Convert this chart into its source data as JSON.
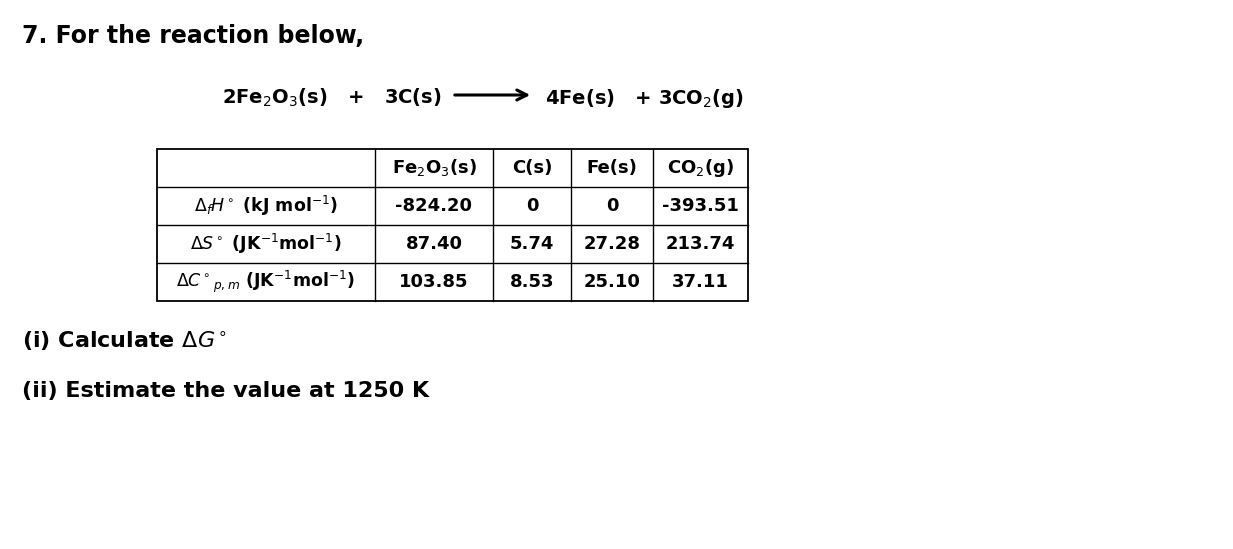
{
  "title_number": "7.",
  "title_text": " For the reaction below,",
  "bg_color": "#ffffff",
  "text_color": "#000000",
  "table_data": [
    [
      "-824.20",
      "0",
      "0",
      "-393.51"
    ],
    [
      "87.40",
      "5.74",
      "27.28",
      "213.74"
    ],
    [
      "103.85",
      "8.53",
      "25.10",
      "37.11"
    ]
  ],
  "font_size_title": 17,
  "font_size_reaction": 14,
  "font_size_table": 13,
  "font_size_sub": 16
}
